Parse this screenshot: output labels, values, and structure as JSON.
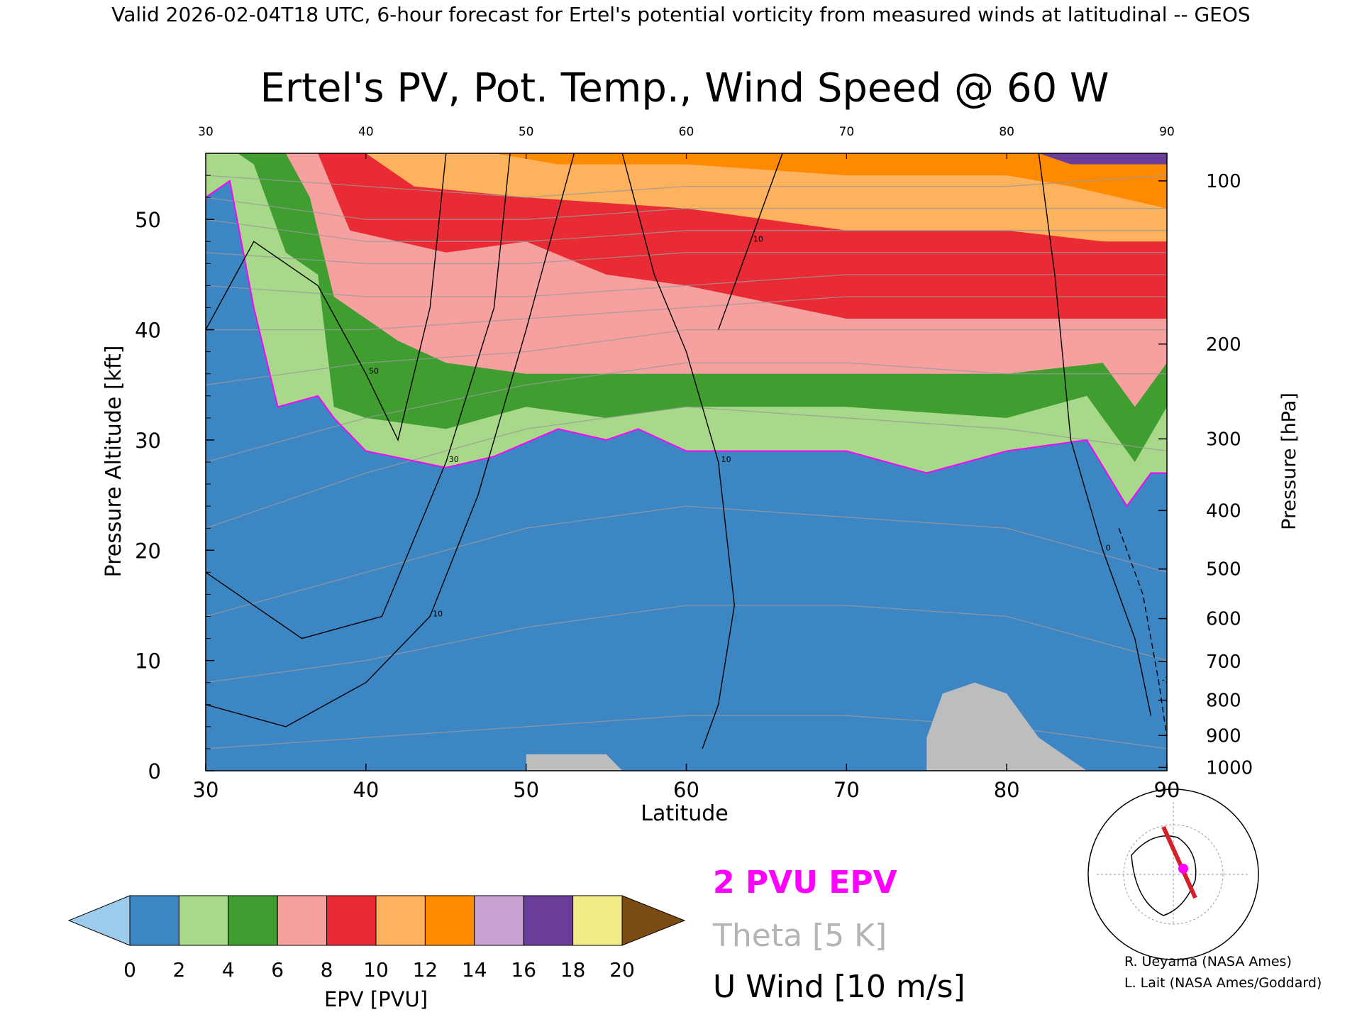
{
  "header": {
    "valid_line": "Valid 2026-02-04T18 UTC, 6-hour forecast for Ertel's potential vorticity from measured winds at latitudinal -- GEOS"
  },
  "chart_data": {
    "type": "heatmap",
    "title": "Ertel's PV, Pot. Temp., Wind Speed @ 60 W",
    "xlabel": "Latitude",
    "ylabel": "Pressure Altitude [kft]",
    "y2label": "Pressure [hPa]",
    "xlim": [
      30,
      90
    ],
    "ylim": [
      0,
      56
    ],
    "x_ticks": [
      "30",
      "40",
      "50",
      "60",
      "70",
      "80",
      "90"
    ],
    "top_ticks": [
      "30",
      "40",
      "50",
      "60",
      "70",
      "80",
      "90"
    ],
    "y_ticks": [
      "0",
      "10",
      "20",
      "30",
      "40",
      "50"
    ],
    "pressure_ticks": [
      {
        "label": "1000",
        "kft": 0.3
      },
      {
        "label": "900",
        "kft": 3.2
      },
      {
        "label": "800",
        "kft": 6.4
      },
      {
        "label": "700",
        "kft": 9.9
      },
      {
        "label": "600",
        "kft": 13.8
      },
      {
        "label": "500",
        "kft": 18.3
      },
      {
        "label": "400",
        "kft": 23.6
      },
      {
        "label": "300",
        "kft": 30.1
      },
      {
        "label": "200",
        "kft": 38.7
      },
      {
        "label": "100",
        "kft": 53.5
      }
    ],
    "epv_layers": [
      {
        "pvu": 1,
        "kft": [
          [
            30,
            0
          ],
          [
            40,
            0
          ],
          [
            50,
            0
          ],
          [
            60,
            0
          ],
          [
            70,
            0
          ],
          [
            80,
            0
          ],
          [
            90,
            0
          ]
        ]
      },
      {
        "pvu": 2,
        "kft": [
          [
            30,
            52
          ],
          [
            31.5,
            53.5
          ],
          [
            33,
            42
          ],
          [
            34.5,
            33
          ],
          [
            37,
            34
          ],
          [
            38,
            32
          ],
          [
            40,
            29
          ],
          [
            45,
            27.5
          ],
          [
            48,
            28.5
          ],
          [
            52,
            31
          ],
          [
            55,
            30
          ],
          [
            57,
            31
          ],
          [
            60,
            29
          ],
          [
            65,
            29
          ],
          [
            70,
            29
          ],
          [
            75,
            27
          ],
          [
            80,
            29
          ],
          [
            85,
            30
          ],
          [
            87.5,
            24
          ],
          [
            89,
            27
          ],
          [
            90,
            27
          ]
        ]
      },
      {
        "pvu": 4,
        "kft": [
          [
            30,
            56
          ],
          [
            32,
            56
          ],
          [
            33,
            55
          ],
          [
            35,
            47
          ],
          [
            37,
            45
          ],
          [
            38,
            33
          ],
          [
            40,
            32
          ],
          [
            45,
            31
          ],
          [
            50,
            33
          ],
          [
            55,
            32
          ],
          [
            60,
            33
          ],
          [
            70,
            33
          ],
          [
            80,
            32
          ],
          [
            85,
            34
          ],
          [
            88,
            28
          ],
          [
            90,
            33
          ]
        ]
      },
      {
        "pvu": 6,
        "kft": [
          [
            30,
            56
          ],
          [
            35,
            56
          ],
          [
            36.5,
            52
          ],
          [
            38,
            43
          ],
          [
            42,
            39
          ],
          [
            45,
            37
          ],
          [
            50,
            36
          ],
          [
            55,
            36
          ],
          [
            60,
            36
          ],
          [
            70,
            36
          ],
          [
            80,
            36
          ],
          [
            86,
            37
          ],
          [
            88,
            33
          ],
          [
            90,
            37
          ]
        ]
      },
      {
        "pvu": 8,
        "kft": [
          [
            30,
            56
          ],
          [
            37,
            56
          ],
          [
            39,
            49
          ],
          [
            42,
            48
          ],
          [
            45,
            47
          ],
          [
            50,
            48
          ],
          [
            55,
            45
          ],
          [
            60,
            44
          ],
          [
            70,
            41
          ],
          [
            80,
            41
          ],
          [
            86,
            41
          ],
          [
            90,
            41
          ]
        ]
      },
      {
        "pvu": 11,
        "kft": [
          [
            30,
            56
          ],
          [
            40,
            56
          ],
          [
            43,
            53
          ],
          [
            50,
            52
          ],
          [
            60,
            51
          ],
          [
            70,
            49
          ],
          [
            80,
            49
          ],
          [
            86,
            48
          ],
          [
            90,
            48
          ]
        ]
      },
      {
        "pvu": 14,
        "kft": [
          [
            30,
            56
          ],
          [
            48,
            56
          ],
          [
            52,
            55
          ],
          [
            60,
            55
          ],
          [
            70,
            54
          ],
          [
            80,
            54
          ],
          [
            84,
            53
          ],
          [
            87,
            52
          ],
          [
            90,
            51
          ]
        ]
      },
      {
        "pvu": 17,
        "kft": [
          [
            30,
            56
          ],
          [
            82,
            56
          ],
          [
            84,
            55
          ],
          [
            87,
            55
          ],
          [
            90,
            55
          ]
        ]
      },
      {
        "pvu": 21,
        "kft": [
          [
            30,
            56
          ],
          [
            88,
            56
          ],
          [
            90,
            56
          ]
        ]
      }
    ],
    "theta_contours": [
      {
        "theta": "300",
        "kft": [
          [
            30,
            2
          ],
          [
            40,
            3
          ],
          [
            50,
            4
          ],
          [
            60,
            5
          ],
          [
            70,
            5
          ],
          [
            80,
            4
          ],
          [
            90,
            2
          ]
        ]
      },
      {
        "theta": "310",
        "kft": [
          [
            30,
            8
          ],
          [
            40,
            10
          ],
          [
            50,
            13
          ],
          [
            60,
            15
          ],
          [
            70,
            15
          ],
          [
            80,
            14
          ],
          [
            90,
            10
          ]
        ]
      },
      {
        "theta": "320",
        "kft": [
          [
            30,
            14
          ],
          [
            40,
            18
          ],
          [
            50,
            22
          ],
          [
            60,
            24
          ],
          [
            70,
            23
          ],
          [
            80,
            22
          ],
          [
            90,
            18
          ]
        ]
      },
      {
        "theta": "330",
        "kft": [
          [
            30,
            22
          ],
          [
            40,
            27
          ],
          [
            50,
            31
          ],
          [
            60,
            33
          ],
          [
            70,
            32
          ],
          [
            80,
            31
          ],
          [
            90,
            29
          ]
        ]
      },
      {
        "theta": "340",
        "kft": [
          [
            30,
            28
          ],
          [
            40,
            32
          ],
          [
            50,
            35
          ],
          [
            60,
            37
          ],
          [
            70,
            37
          ],
          [
            80,
            36
          ],
          [
            90,
            36
          ]
        ]
      },
      {
        "theta": "350",
        "kft": [
          [
            30,
            35
          ],
          [
            40,
            37
          ],
          [
            50,
            38
          ],
          [
            60,
            40
          ],
          [
            70,
            40
          ],
          [
            80,
            40
          ],
          [
            90,
            40
          ]
        ]
      },
      {
        "theta": "360",
        "kft": [
          [
            30,
            40
          ],
          [
            40,
            40
          ],
          [
            50,
            41
          ],
          [
            60,
            42
          ],
          [
            70,
            43
          ],
          [
            80,
            43
          ],
          [
            90,
            43
          ]
        ]
      },
      {
        "theta": "370",
        "kft": [
          [
            30,
            44
          ],
          [
            40,
            43
          ],
          [
            50,
            43
          ],
          [
            60,
            44
          ],
          [
            70,
            45
          ],
          [
            80,
            45
          ],
          [
            90,
            45
          ]
        ]
      },
      {
        "theta": "380",
        "kft": [
          [
            30,
            47
          ],
          [
            40,
            46
          ],
          [
            50,
            46
          ],
          [
            60,
            47
          ],
          [
            70,
            47
          ],
          [
            80,
            47
          ],
          [
            90,
            47
          ]
        ]
      },
      {
        "theta": "390",
        "kft": [
          [
            30,
            50
          ],
          [
            40,
            48
          ],
          [
            50,
            48
          ],
          [
            60,
            49
          ],
          [
            70,
            49
          ],
          [
            80,
            49
          ],
          [
            90,
            49
          ]
        ]
      },
      {
        "theta": "400",
        "kft": [
          [
            30,
            52
          ],
          [
            40,
            50
          ],
          [
            50,
            50
          ],
          [
            60,
            51
          ],
          [
            70,
            51
          ],
          [
            80,
            51
          ],
          [
            90,
            51
          ]
        ]
      },
      {
        "theta": "410",
        "kft": [
          [
            30,
            54
          ],
          [
            40,
            53
          ],
          [
            50,
            52
          ],
          [
            60,
            53
          ],
          [
            70,
            53
          ],
          [
            80,
            53
          ],
          [
            90,
            54
          ]
        ]
      }
    ],
    "u_wind_contours": [
      {
        "label": "10",
        "dashed": false,
        "kft": [
          [
            30,
            6
          ],
          [
            35,
            4
          ],
          [
            40,
            8
          ],
          [
            44,
            14
          ],
          [
            47,
            25
          ],
          [
            50,
            40
          ],
          [
            53,
            56
          ]
        ]
      },
      {
        "label": "30",
        "dashed": false,
        "kft": [
          [
            30,
            18
          ],
          [
            36,
            12
          ],
          [
            41,
            14
          ],
          [
            45,
            28
          ],
          [
            48,
            42
          ],
          [
            49,
            56
          ]
        ]
      },
      {
        "label": "50",
        "dashed": false,
        "kft": [
          [
            30,
            40
          ],
          [
            33,
            48
          ],
          [
            37,
            44
          ],
          [
            40,
            36
          ],
          [
            42,
            30
          ],
          [
            44,
            42
          ],
          [
            45,
            56
          ]
        ]
      },
      {
        "label": "10",
        "dashed": false,
        "kft": [
          [
            56,
            56
          ],
          [
            58,
            45
          ],
          [
            60,
            38
          ],
          [
            62,
            28
          ],
          [
            63,
            15
          ],
          [
            62,
            6
          ],
          [
            61,
            2
          ]
        ]
      },
      {
        "label": "10",
        "dashed": false,
        "kft": [
          [
            66,
            56
          ],
          [
            64,
            48
          ],
          [
            62,
            40
          ]
        ]
      },
      {
        "label": "0",
        "dashed": false,
        "kft": [
          [
            82,
            56
          ],
          [
            83,
            45
          ],
          [
            84,
            30
          ],
          [
            86,
            20
          ],
          [
            88,
            12
          ],
          [
            89,
            5
          ]
        ]
      },
      {
        "label": "-10",
        "dashed": true,
        "kft": [
          [
            87,
            22
          ],
          [
            88.5,
            16
          ],
          [
            89.5,
            8
          ],
          [
            90,
            3
          ]
        ]
      }
    ],
    "terrain": [
      [
        30,
        0
      ],
      [
        50,
        0
      ],
      [
        50,
        1.5
      ],
      [
        55,
        1.5
      ],
      [
        56,
        0
      ],
      [
        75,
        0
      ],
      [
        75,
        3
      ],
      [
        76,
        7
      ],
      [
        78,
        8
      ],
      [
        80,
        7
      ],
      [
        82,
        3
      ],
      [
        84,
        1
      ],
      [
        85,
        0
      ],
      [
        90,
        0
      ]
    ],
    "colorbar": {
      "label": "EPV [PVU]",
      "ticks": [
        "0",
        "2",
        "4",
        "6",
        "8",
        "10",
        "12",
        "14",
        "16",
        "18",
        "20"
      ],
      "colors": [
        "#9ccbeb",
        "#3d86c4",
        "#a8d98a",
        "#3f9e2f",
        "#f7a0a0",
        "#e82b34",
        "#fdb25d",
        "#ff8a00",
        "#c8a3d3",
        "#6a3d9a",
        "#f3ea88",
        "#7a4b13"
      ]
    },
    "legend": [
      {
        "label": "2 PVU EPV",
        "color": "#ff00ff"
      },
      {
        "label": "Theta [5 K]",
        "color": "#b4b4b4"
      },
      {
        "label": "U Wind [10 m/s]",
        "color": "#000000"
      }
    ]
  },
  "credits": [
    "R. Ueyama (NASA Ames)",
    "L. Lait (NASA Ames/Goddard)"
  ]
}
